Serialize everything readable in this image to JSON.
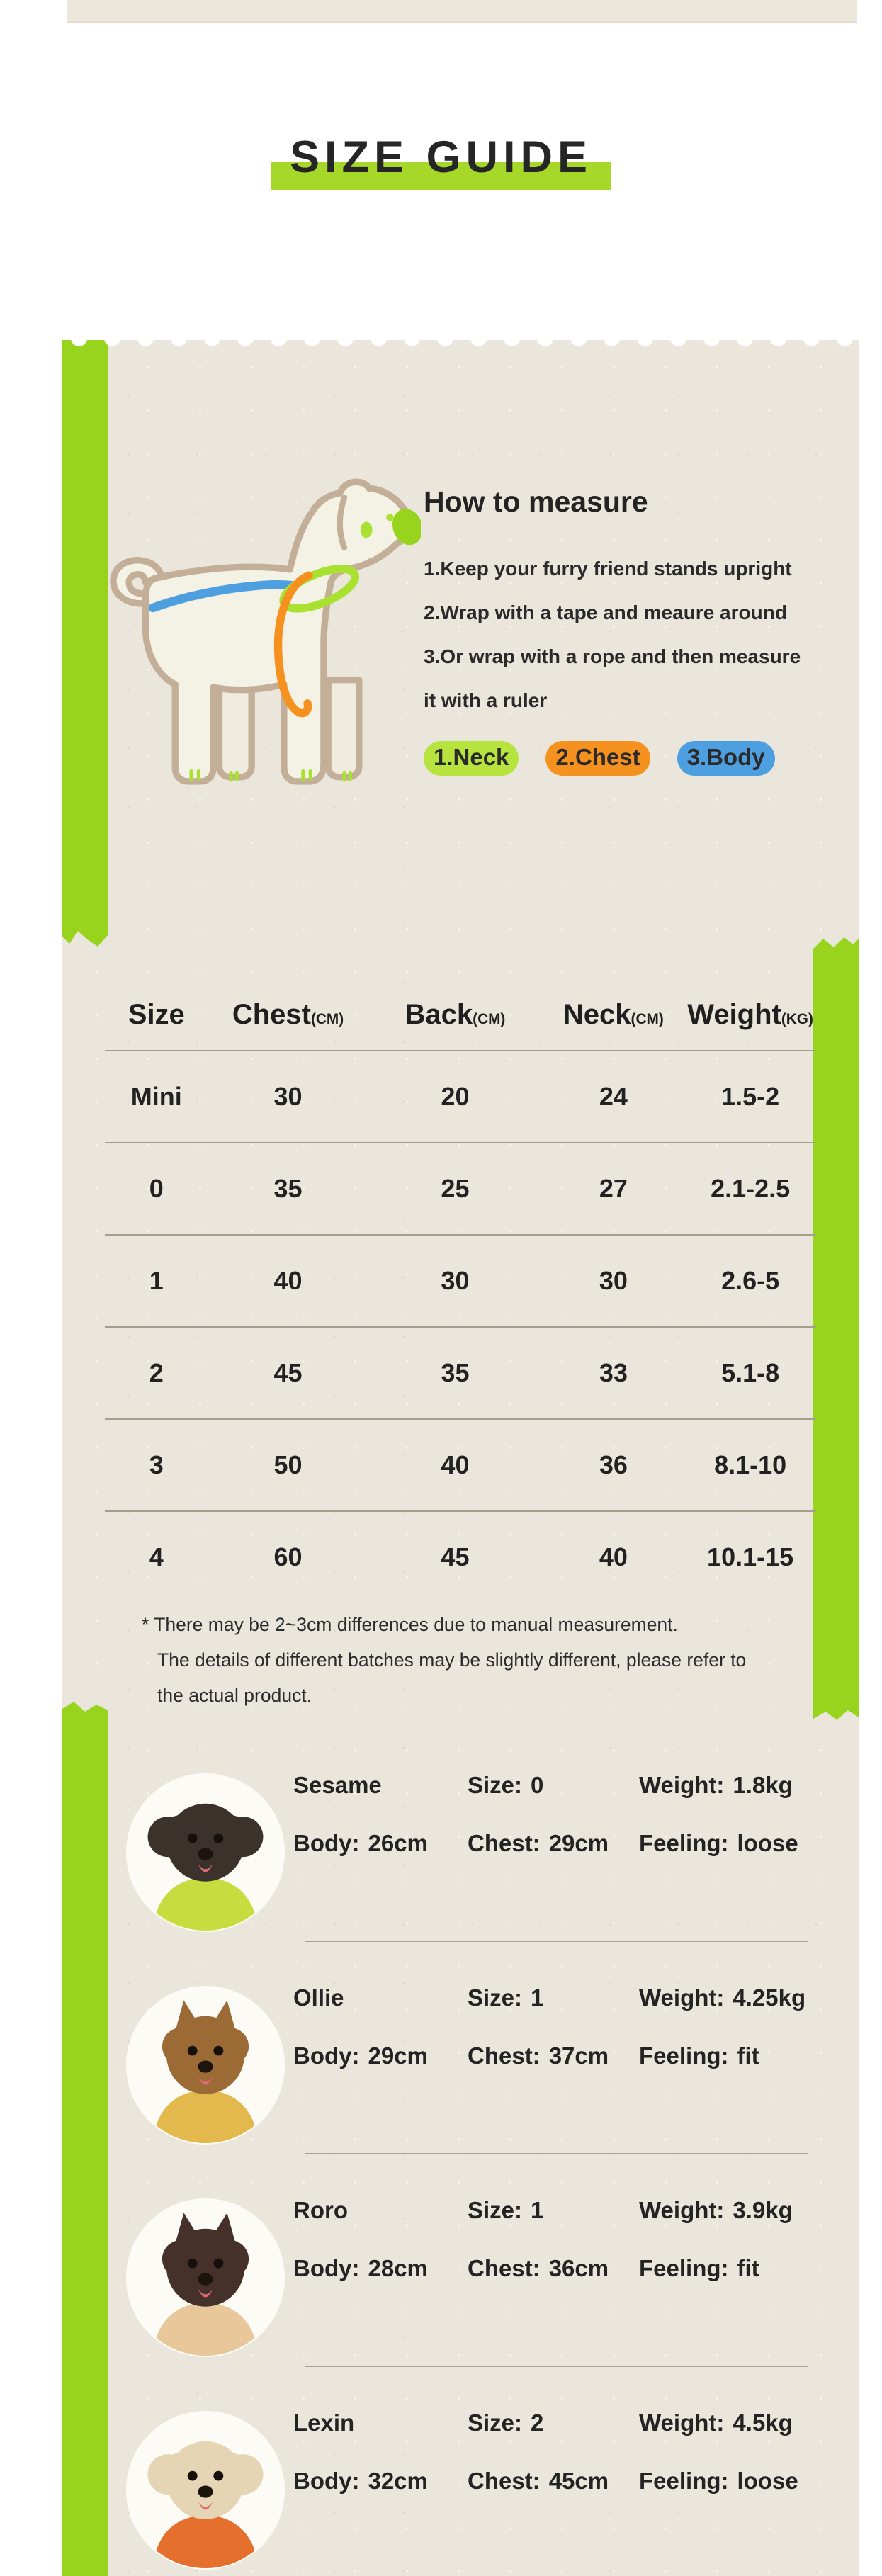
{
  "header": {
    "title": "SIZE GUIDE"
  },
  "measure": {
    "heading": "How to measure",
    "steps": [
      "1.Keep your furry friend stands upright",
      "2.Wrap with a tape and meaure around",
      "3.Or wrap with a rope and then measure",
      "it with a ruler"
    ],
    "legend": [
      {
        "label": "1.Neck",
        "color": "#b7e33e"
      },
      {
        "label": "2.Chest",
        "color": "#f5921f"
      },
      {
        "label": "3.Body",
        "color": "#4d9fe0"
      }
    ]
  },
  "size_table": {
    "columns": [
      {
        "label": "Size",
        "unit": ""
      },
      {
        "label": "Chest",
        "unit": "(CM)"
      },
      {
        "label": "Back",
        "unit": "(CM)"
      },
      {
        "label": "Neck",
        "unit": "(CM)"
      },
      {
        "label": "Weight",
        "unit": "(KG)"
      }
    ],
    "rows": [
      [
        "Mini",
        "30",
        "20",
        "24",
        "1.5-2"
      ],
      [
        "0",
        "35",
        "25",
        "27",
        "2.1-2.5"
      ],
      [
        "1",
        "40",
        "30",
        "30",
        "2.6-5"
      ],
      [
        "2",
        "45",
        "35",
        "33",
        "5.1-8"
      ],
      [
        "3",
        "50",
        "40",
        "36",
        "8.1-10"
      ],
      [
        "4",
        "60",
        "45",
        "40",
        "10.1-15"
      ]
    ],
    "notes": [
      "* There may be 2~3cm differences due to manual measurement.",
      "The details of different batches may be slightly different, please refer to",
      "the actual product."
    ]
  },
  "models": {
    "field_labels": {
      "size": "Size:",
      "weight": "Weight:",
      "body": "Body:",
      "chest": "Chest:",
      "feeling": "Feeling:"
    },
    "items": [
      {
        "name": "Sesame",
        "size": "0",
        "weight": "1.8kg",
        "body": "26cm",
        "chest": "29cm",
        "feeling": "loose",
        "avatar": {
          "fur": "#3b332b",
          "outfit": "#c6dc3f",
          "ears": "round"
        }
      },
      {
        "name": "Ollie",
        "size": "1",
        "weight": "4.25kg",
        "body": "29cm",
        "chest": "37cm",
        "feeling": "fit",
        "avatar": {
          "fur": "#9c6b35",
          "outfit": "#e3b84d",
          "ears": "pointy"
        }
      },
      {
        "name": "Roro",
        "size": "1",
        "weight": "3.9kg",
        "body": "28cm",
        "chest": "36cm",
        "feeling": "fit",
        "avatar": {
          "fur": "#46302a",
          "outfit": "#e8c79a",
          "ears": "pointy"
        }
      },
      {
        "name": "Lexin",
        "size": "2",
        "weight": "4.5kg",
        "body": "32cm",
        "chest": "45cm",
        "feeling": "loose",
        "avatar": {
          "fur": "#e6d5b4",
          "outfit": "#e56f2c",
          "ears": "round"
        }
      }
    ]
  },
  "colors": {
    "card_bg": "#eae6db",
    "stripe_green": "#98d41d",
    "title_highlight": "#a6d829",
    "neck_highlight": "#b7e33e",
    "chest_highlight": "#f5921f",
    "body_highlight": "#4d9fe0",
    "text": "#242424"
  }
}
